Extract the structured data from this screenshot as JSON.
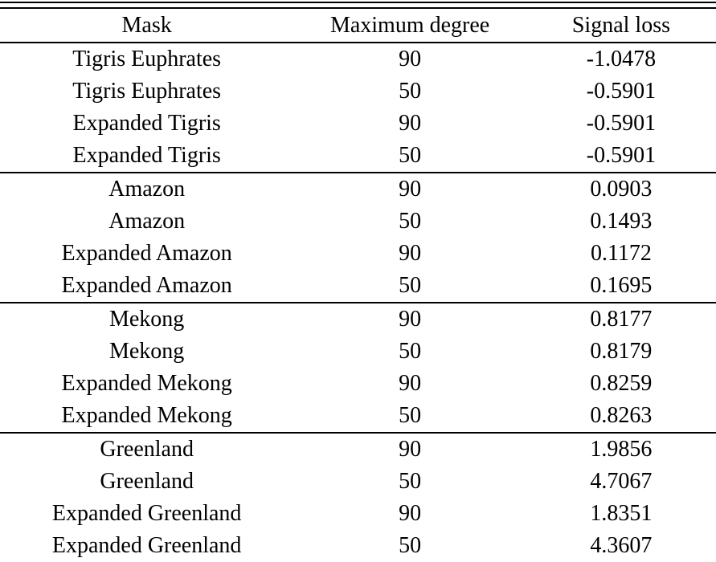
{
  "page": {
    "background": "#ffffff",
    "text_color": "#000000",
    "rule_color": "#000000"
  },
  "table": {
    "columns": [
      "Mask",
      "Maximum degree",
      "Signal loss"
    ],
    "groups": [
      {
        "rows": [
          [
            "Tigris Euphrates",
            "90",
            "-1.0478"
          ],
          [
            "Tigris Euphrates",
            "50",
            "-0.5901"
          ],
          [
            "Expanded Tigris",
            "90",
            "-0.5901"
          ],
          [
            "Expanded Tigris",
            "50",
            "-0.5901"
          ]
        ]
      },
      {
        "rows": [
          [
            "Amazon",
            "90",
            "0.0903"
          ],
          [
            "Amazon",
            "50",
            "0.1493"
          ],
          [
            "Expanded Amazon",
            "90",
            "0.1172"
          ],
          [
            "Expanded Amazon",
            "50",
            "0.1695"
          ]
        ]
      },
      {
        "rows": [
          [
            "Mekong",
            "90",
            "0.8177"
          ],
          [
            "Mekong",
            "50",
            "0.8179"
          ],
          [
            "Expanded Mekong",
            "90",
            "0.8259"
          ],
          [
            "Expanded Mekong",
            "50",
            "0.8263"
          ]
        ]
      },
      {
        "rows": [
          [
            "Greenland",
            "90",
            "1.9856"
          ],
          [
            "Greenland",
            "50",
            "4.7067"
          ],
          [
            "Expanded Greenland",
            "90",
            "1.8351"
          ],
          [
            "Expanded Greenland",
            "50",
            "4.3607"
          ]
        ]
      }
    ]
  },
  "chart_data": {
    "type": "table",
    "columns": [
      "Mask",
      "Maximum degree",
      "Signal loss"
    ],
    "rows": [
      [
        "Tigris Euphrates",
        90,
        -1.0478
      ],
      [
        "Tigris Euphrates",
        50,
        -0.5901
      ],
      [
        "Expanded Tigris",
        90,
        -0.5901
      ],
      [
        "Expanded Tigris",
        50,
        -0.5901
      ],
      [
        "Amazon",
        90,
        0.0903
      ],
      [
        "Amazon",
        50,
        0.1493
      ],
      [
        "Expanded Amazon",
        90,
        0.1172
      ],
      [
        "Expanded Amazon",
        50,
        0.1695
      ],
      [
        "Mekong",
        90,
        0.8177
      ],
      [
        "Mekong",
        50,
        0.8179
      ],
      [
        "Expanded Mekong",
        90,
        0.8259
      ],
      [
        "Expanded Mekong",
        50,
        0.8263
      ],
      [
        "Greenland",
        90,
        1.9856
      ],
      [
        "Greenland",
        50,
        4.7067
      ],
      [
        "Expanded Greenland",
        90,
        1.8351
      ],
      [
        "Expanded Greenland",
        50,
        4.3607
      ]
    ]
  }
}
